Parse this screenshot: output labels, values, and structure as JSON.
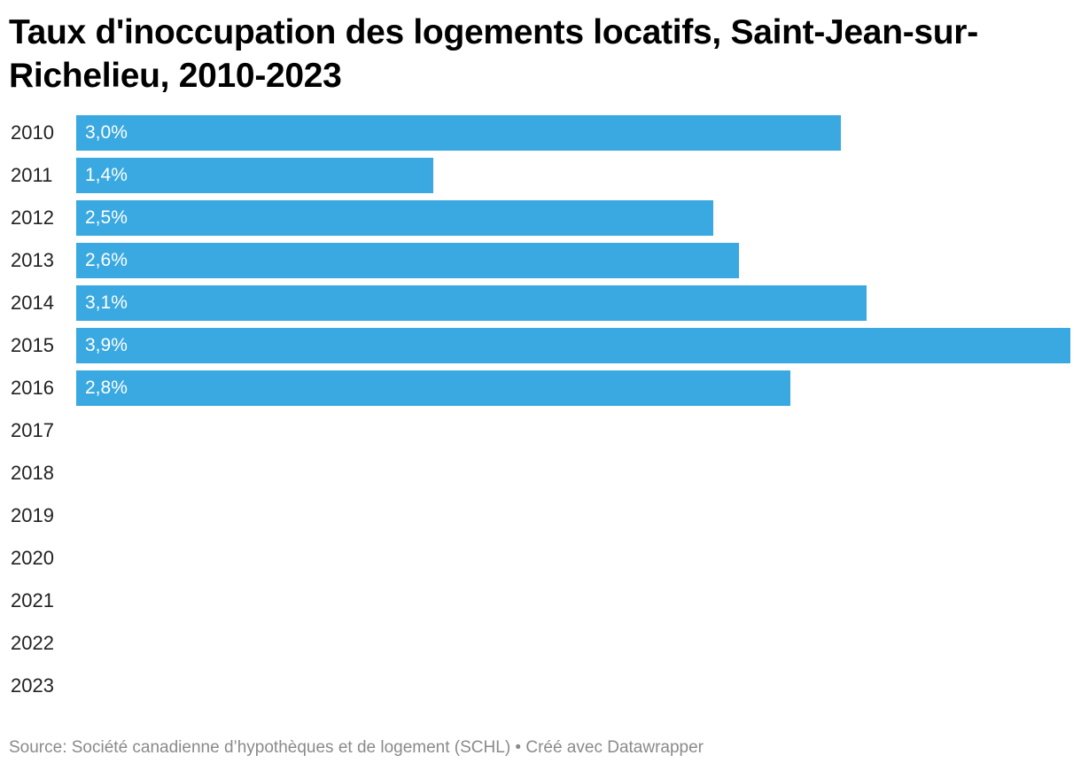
{
  "header": {
    "title": "Taux d'inoccupation des logements locatifs, Saint-Jean-sur-Richelieu, 2010-2023"
  },
  "chart_data": {
    "type": "bar",
    "orientation": "horizontal",
    "title": "Taux d'inoccupation des logements locatifs, Saint-Jean-sur-Richelieu, 2010-2023",
    "categories": [
      "2010",
      "2011",
      "2012",
      "2013",
      "2014",
      "2015",
      "2016",
      "2017",
      "2018",
      "2019",
      "2020",
      "2021",
      "2022",
      "2023"
    ],
    "values": [
      3.0,
      1.4,
      2.5,
      2.6,
      3.1,
      3.9,
      2.8,
      null,
      null,
      null,
      null,
      null,
      null,
      null
    ],
    "labels": [
      "3,0%",
      "1,4%",
      "2,5%",
      "2,6%",
      "3,1%",
      "3,9%",
      "2,8%",
      "",
      "",
      "",
      "",
      "",
      "",
      ""
    ],
    "xlim": [
      0,
      3.9
    ],
    "bar_color": "#3aa9e1",
    "grid": false,
    "legend": "none"
  },
  "footer": {
    "text": "Source: Société canadienne d’hypothèques et de logement (SCHL) • Créé avec Datawrapper"
  }
}
